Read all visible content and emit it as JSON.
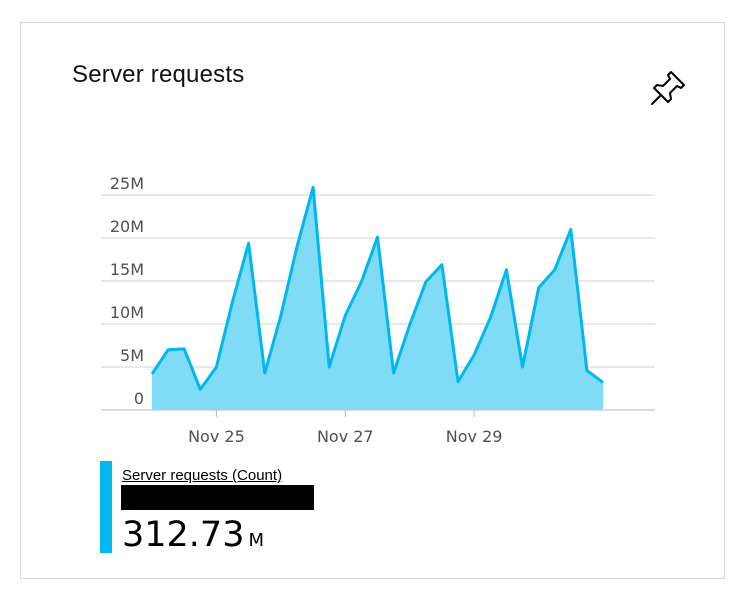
{
  "tile": {
    "title": "Server requests",
    "pin_icon": "pin-icon"
  },
  "legend": {
    "series_name": "Server requests (Count)",
    "value": "312.73",
    "unit": "M",
    "color": "#00b7f0"
  },
  "chart_data": {
    "type": "area",
    "ylim": [
      0,
      25
    ],
    "yticks": [
      0,
      5,
      10,
      15,
      20,
      25
    ],
    "ytick_labels": [
      "0",
      "5M",
      "10M",
      "15M",
      "20M",
      "25M"
    ],
    "xtick_labels": [
      "Nov 25",
      "Nov 27",
      "Nov 29"
    ],
    "xtick_positions": [
      4,
      12,
      20
    ],
    "line_color": "#00b7f0",
    "fill_color": "#80dbf7",
    "series": [
      {
        "name": "Server requests (Count)",
        "x": [
          0,
          1,
          2,
          3,
          4,
          5,
          6,
          7,
          8,
          9,
          10,
          11,
          12,
          13,
          14,
          15,
          16,
          17,
          18,
          19,
          20,
          21,
          22,
          23,
          24,
          25,
          26,
          27,
          28
        ],
        "values": [
          4.2,
          7.0,
          7.1,
          2.4,
          5.0,
          12.6,
          19.4,
          4.3,
          11.0,
          19.0,
          25.9,
          5.0,
          11.0,
          14.9,
          20.1,
          4.3,
          9.9,
          14.9,
          16.9,
          3.3,
          6.4,
          10.7,
          16.3,
          5.0,
          14.2,
          16.3,
          21.0,
          4.6,
          3.2
        ]
      }
    ]
  }
}
